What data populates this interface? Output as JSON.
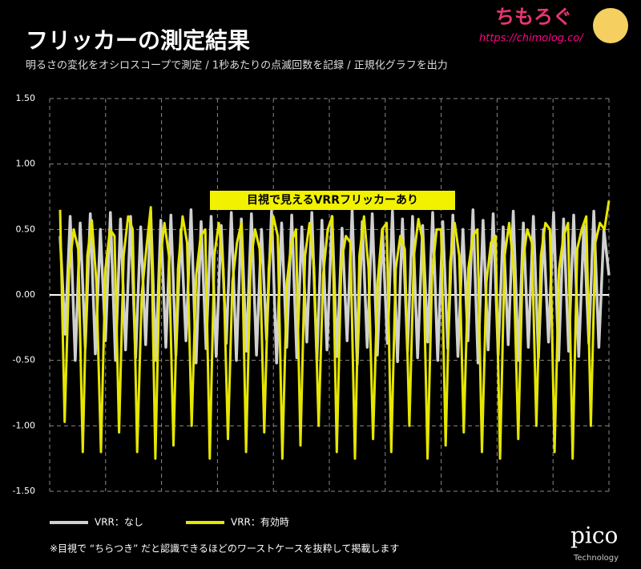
{
  "header": {
    "title": "フリッカーの測定結果",
    "subtitle": "明るさの変化をオシロスコープで測定 / 1秒あたりの点滅回数を記録 / 正規化グラフを出力",
    "brand": "ちもろぐ",
    "url": "https://chimolog.co/"
  },
  "chart_data": {
    "type": "line",
    "annotation": "目視で見えるVRRフリッカーあり",
    "ylim": [
      -1.5,
      1.5
    ],
    "yticks": [
      {
        "value": 1.5,
        "label": "1.50"
      },
      {
        "value": 1.0,
        "label": "1.00"
      },
      {
        "value": 0.5,
        "label": "0.50"
      },
      {
        "value": 0,
        "label": "0.00"
      },
      {
        "value": -0.5,
        "label": "-0.50"
      },
      {
        "value": -1.0,
        "label": "-1.00"
      },
      {
        "value": -1.5,
        "label": "-1.50"
      }
    ],
    "grid": true,
    "series": [
      {
        "name": "VRR：なし",
        "color": "#d0d0d0",
        "values": [
          0.45,
          -0.3,
          0.6,
          -0.5,
          0.55,
          -0.4,
          0.62,
          -0.45,
          0.5,
          -0.35,
          0.63,
          -0.5,
          0.58,
          -0.42,
          0.6,
          -0.48,
          0.52,
          -0.38,
          0.64,
          -0.5,
          0.57,
          -0.4,
          0.61,
          -0.46,
          0.5,
          -0.35,
          0.65,
          -0.52,
          0.56,
          -0.41,
          0.6,
          -0.47,
          0.53,
          -0.37,
          0.63,
          -0.5,
          0.58,
          -0.43,
          0.62,
          -0.46,
          0.5,
          -0.34,
          0.64,
          -0.52,
          0.55,
          -0.4,
          0.61,
          -0.48,
          0.52,
          -0.36,
          0.63,
          -0.5,
          0.57,
          -0.42,
          0.6,
          -0.47,
          0.51,
          -0.35,
          0.65,
          -0.53,
          0.56,
          -0.4,
          0.62,
          -0.46,
          0.5,
          -0.37,
          0.64,
          -0.51,
          0.58,
          -0.43,
          0.6,
          -0.48,
          0.53,
          -0.36,
          0.63,
          -0.5,
          0.56,
          -0.41,
          0.61,
          -0.47,
          0.5,
          -0.35,
          0.65,
          -0.52,
          0.57,
          -0.42,
          0.62,
          -0.46,
          0.52,
          -0.38,
          0.64,
          -0.5,
          0.55,
          -0.4,
          0.6,
          -0.48,
          0.5,
          -0.36,
          0.63,
          -0.5,
          0.58,
          -0.43,
          0.61,
          -0.47,
          0.53,
          -0.37,
          0.64,
          -0.4,
          0.5,
          0.15
        ]
      },
      {
        "name": "VRR：有効時",
        "color": "#e6e600",
        "values": [
          0.65,
          -0.97,
          0.2,
          0.5,
          0.35,
          -1.2,
          0.3,
          0.57,
          0.1,
          -1.2,
          0.2,
          0.5,
          0.45,
          -1.05,
          0.3,
          0.6,
          0.5,
          -1.2,
          0.0,
          0.35,
          0.67,
          -1.25,
          0.25,
          0.55,
          0.3,
          -1.15,
          0.2,
          0.6,
          0.4,
          -1.0,
          0.15,
          0.45,
          0.5,
          -1.25,
          0.3,
          0.55,
          0.2,
          -1.1,
          0.1,
          0.4,
          0.55,
          -1.2,
          0.25,
          0.5,
          0.35,
          -1.05,
          0.2,
          0.6,
          0.45,
          -1.25,
          0.1,
          0.4,
          0.5,
          -1.15,
          0.3,
          0.55,
          0.2,
          -1.0,
          0.15,
          0.5,
          0.6,
          -1.2,
          0.25,
          0.45,
          0.4,
          -1.25,
          0.3,
          0.6,
          0.2,
          -1.1,
          0.1,
          0.5,
          0.55,
          -1.2,
          0.2,
          0.45,
          0.35,
          -1.0,
          0.3,
          0.58,
          0.4,
          -1.25,
          0.15,
          0.5,
          0.5,
          -1.15,
          0.25,
          0.55,
          0.3,
          -1.05,
          0.2,
          0.45,
          0.5,
          -1.2,
          0.1,
          0.4,
          0.45,
          -1.25,
          0.3,
          0.55,
          0.2,
          -1.1,
          0.25,
          0.5,
          0.4,
          -1.0,
          0.3,
          0.55,
          0.5,
          -1.2,
          0.2,
          0.45,
          0.55,
          -1.25,
          0.35,
          0.5,
          0.6,
          -1.0,
          0.4,
          0.55,
          0.5,
          0.72
        ]
      }
    ],
    "note": "※目視で “ちらつき” だと認識できるほどのワーストケースを抜粋して掲載します",
    "logo": "pico",
    "logo_sub": "Technology"
  }
}
